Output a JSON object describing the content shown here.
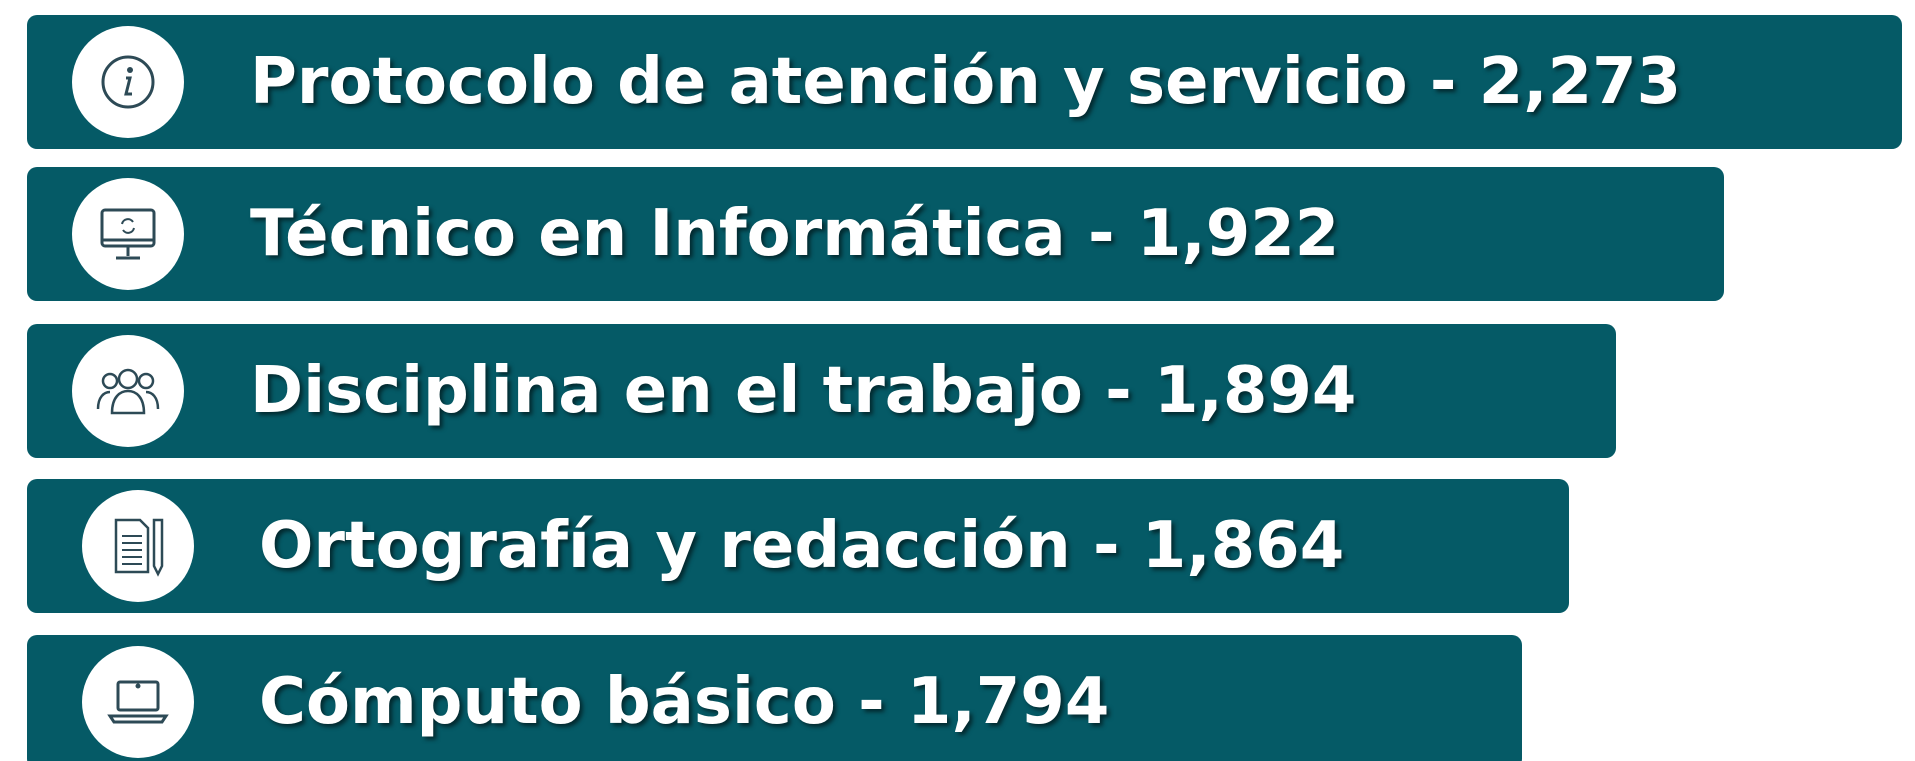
{
  "items": [
    {
      "text": "Protocolo de atención y servicio - 2,273"
    },
    {
      "text": "Técnico en Informática - 1,922"
    },
    {
      "text": "Disciplina en el trabajo - 1,894"
    },
    {
      "text": "Ortografía y redacción - 1,864"
    },
    {
      "text": "Cómputo básico - 1,794"
    }
  ]
}
